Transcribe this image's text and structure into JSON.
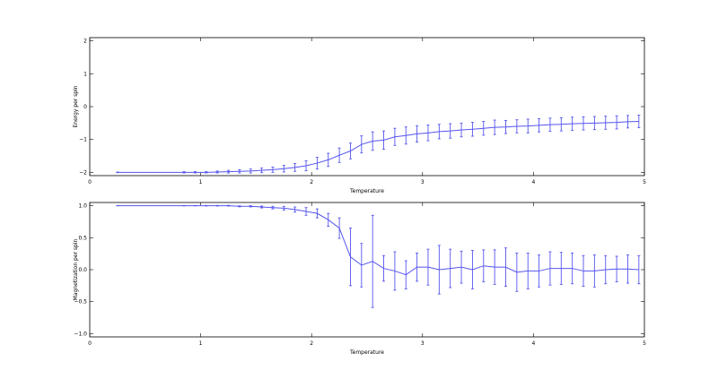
{
  "chart_data": [
    {
      "type": "line",
      "title": "",
      "xlabel": "Temperature",
      "ylabel": "Energy per spin",
      "xlim": [
        0,
        5
      ],
      "ylim": [
        -2.1,
        2.1
      ],
      "xticks": [
        "0",
        "1",
        "2",
        "3",
        "4",
        "5"
      ],
      "yticks": [
        "−2",
        "−1",
        "0",
        "1",
        "2"
      ],
      "xtick_values": [
        0,
        1,
        2,
        3,
        4,
        5
      ],
      "ytick_values": [
        -2,
        -1,
        0,
        1,
        2
      ],
      "grid": false,
      "color": "#5555ee",
      "series": [
        {
          "x": [
            0.25,
            0.85,
            0.95,
            1.05,
            1.15,
            1.25,
            1.35,
            1.45,
            1.55,
            1.65,
            1.75,
            1.85,
            1.95,
            2.05,
            2.15,
            2.25,
            2.35,
            2.45,
            2.55,
            2.65,
            2.75,
            2.85,
            2.95,
            3.05,
            3.15,
            3.25,
            3.35,
            3.45,
            3.55,
            3.65,
            3.75,
            3.85,
            3.95,
            4.05,
            4.15,
            4.25,
            4.35,
            4.45,
            4.55,
            4.65,
            4.75,
            4.85,
            4.95
          ],
          "y": [
            -2.0,
            -2.0,
            -2.0,
            -2.0,
            -1.99,
            -1.98,
            -1.97,
            -1.96,
            -1.94,
            -1.92,
            -1.89,
            -1.85,
            -1.8,
            -1.72,
            -1.62,
            -1.48,
            -1.35,
            -1.15,
            -1.05,
            -1.02,
            -0.92,
            -0.88,
            -0.83,
            -0.8,
            -0.76,
            -0.74,
            -0.71,
            -0.69,
            -0.66,
            -0.63,
            -0.62,
            -0.6,
            -0.59,
            -0.57,
            -0.55,
            -0.54,
            -0.52,
            -0.51,
            -0.5,
            -0.49,
            -0.48,
            -0.46,
            -0.45
          ],
          "err": [
            0.01,
            0.02,
            0.02,
            0.02,
            0.03,
            0.04,
            0.05,
            0.06,
            0.07,
            0.08,
            0.1,
            0.12,
            0.15,
            0.18,
            0.2,
            0.22,
            0.24,
            0.26,
            0.28,
            0.28,
            0.26,
            0.26,
            0.25,
            0.24,
            0.22,
            0.22,
            0.21,
            0.21,
            0.21,
            0.22,
            0.2,
            0.2,
            0.21,
            0.2,
            0.2,
            0.2,
            0.2,
            0.2,
            0.2,
            0.2,
            0.2,
            0.19,
            0.19
          ]
        }
      ]
    },
    {
      "type": "line",
      "title": "",
      "xlabel": "Temperature",
      "ylabel": "Magnetization per spin",
      "xlim": [
        0,
        5
      ],
      "ylim": [
        -1.05,
        1.05
      ],
      "xticks": [
        "0",
        "1",
        "2",
        "3",
        "4",
        "5"
      ],
      "yticks": [
        "−1.0",
        "−0.5",
        "0.0",
        "0.5",
        "1.0"
      ],
      "xtick_values": [
        0,
        1,
        2,
        3,
        4,
        5
      ],
      "ytick_values": [
        -1.0,
        -0.5,
        0.0,
        0.5,
        1.0
      ],
      "grid": false,
      "color": "#5555ee",
      "series": [
        {
          "x": [
            0.25,
            0.85,
            0.95,
            1.05,
            1.15,
            1.25,
            1.35,
            1.45,
            1.55,
            1.65,
            1.75,
            1.85,
            1.95,
            2.05,
            2.15,
            2.25,
            2.35,
            2.45,
            2.55,
            2.65,
            2.75,
            2.85,
            2.95,
            3.05,
            3.15,
            3.25,
            3.35,
            3.45,
            3.55,
            3.65,
            3.75,
            3.85,
            3.95,
            4.05,
            4.15,
            4.25,
            4.35,
            4.45,
            4.55,
            4.65,
            4.75,
            4.85,
            4.95
          ],
          "y": [
            1.0,
            1.0,
            1.0,
            1.0,
            1.0,
            1.0,
            0.99,
            0.99,
            0.98,
            0.97,
            0.96,
            0.94,
            0.91,
            0.88,
            0.78,
            0.65,
            0.2,
            0.07,
            0.13,
            0.02,
            -0.02,
            -0.08,
            0.04,
            0.04,
            0.0,
            0.02,
            0.04,
            0.0,
            0.06,
            0.04,
            0.04,
            -0.04,
            -0.02,
            -0.02,
            0.02,
            0.02,
            0.02,
            -0.02,
            -0.02,
            0.0,
            0.01,
            0.01,
            0.0
          ],
          "err": [
            0.002,
            0.003,
            0.003,
            0.004,
            0.005,
            0.006,
            0.008,
            0.01,
            0.015,
            0.02,
            0.03,
            0.04,
            0.06,
            0.07,
            0.1,
            0.16,
            0.45,
            0.34,
            0.72,
            0.2,
            0.3,
            0.22,
            0.22,
            0.28,
            0.38,
            0.3,
            0.25,
            0.3,
            0.25,
            0.27,
            0.3,
            0.3,
            0.28,
            0.25,
            0.26,
            0.25,
            0.24,
            0.24,
            0.25,
            0.22,
            0.2,
            0.22,
            0.22
          ]
        }
      ]
    }
  ]
}
